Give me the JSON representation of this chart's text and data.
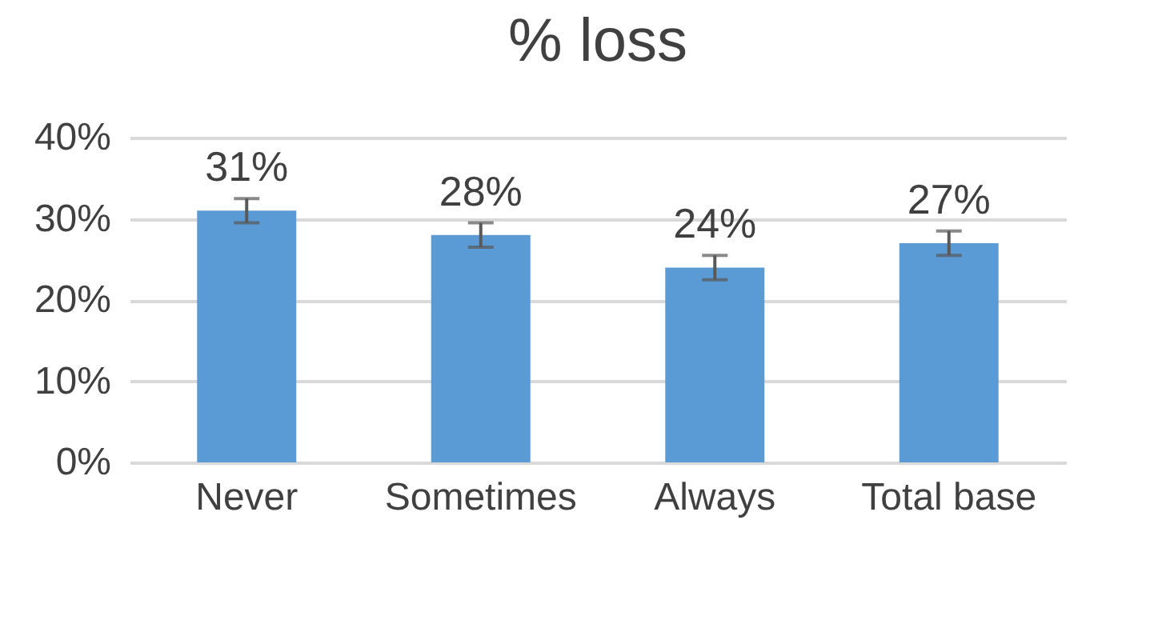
{
  "chart_data": {
    "type": "bar",
    "title": "% loss",
    "categories": [
      "Never",
      "Sometimes",
      "Always",
      "Total base"
    ],
    "values": [
      31,
      28,
      24,
      27
    ],
    "errors": [
      1.5,
      1.5,
      1.5,
      1.5
    ],
    "value_labels": [
      "31%",
      "28%",
      "24%",
      "27%"
    ],
    "color": "#5b9bd5",
    "ylim": [
      0,
      40
    ],
    "yticks": [
      {
        "value": 0,
        "label": "0%"
      },
      {
        "value": 10,
        "label": "10%"
      },
      {
        "value": 20,
        "label": "20%"
      },
      {
        "value": 30,
        "label": "30%"
      },
      {
        "value": 40,
        "label": "40%"
      }
    ],
    "grid": "y"
  }
}
